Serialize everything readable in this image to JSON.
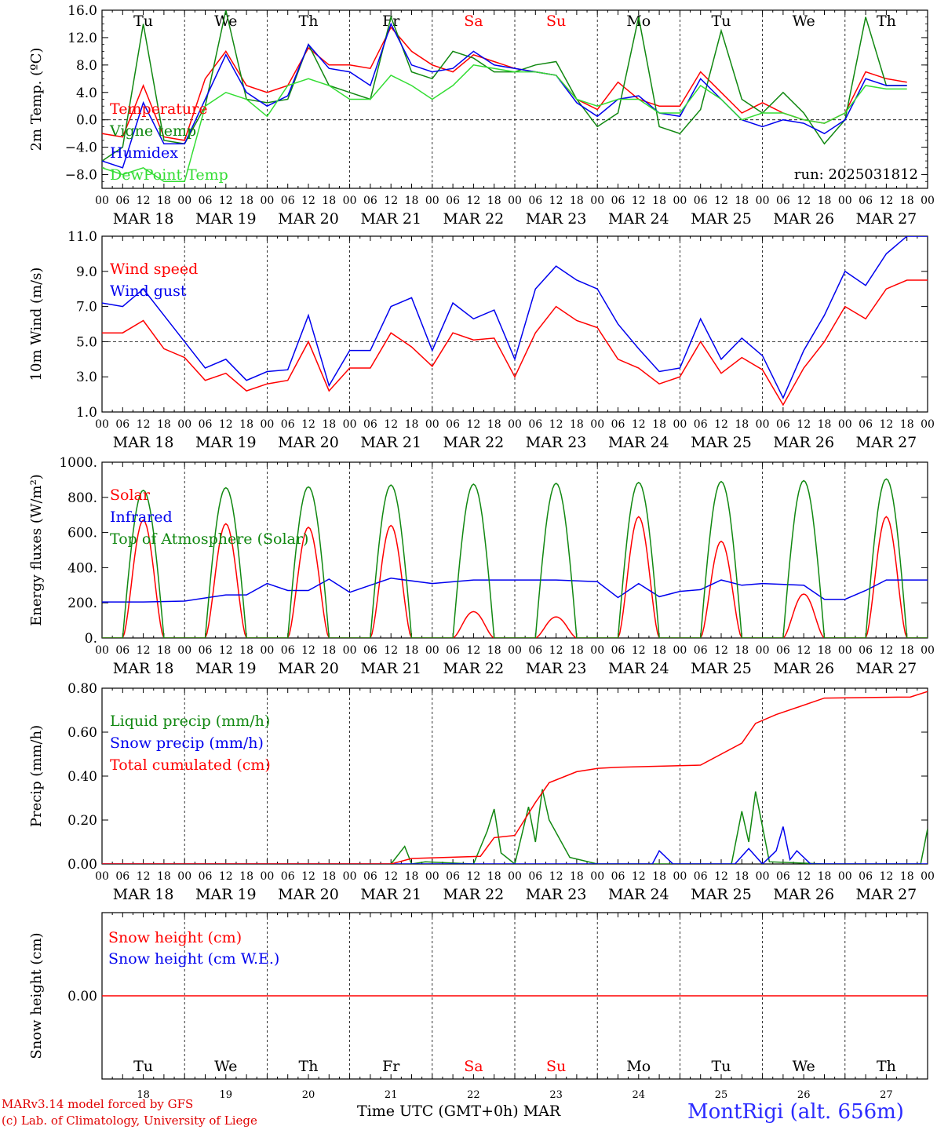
{
  "run_label": "run: 2025031812",
  "footer": {
    "credit1": "MARv3.14 model forced by GFS",
    "credit2": "(c) Lab. of Climatology, University of Liege",
    "time_label": "Time UTC (GMT+0h) MAR",
    "station": "MontRigi (alt. 656m)"
  },
  "colors": {
    "red": "#ff0000",
    "darkgreen": "#118811",
    "blue": "#0000ee",
    "lightgreen": "#33dd33",
    "weekend": "#ff0000",
    "black": "#000000"
  },
  "days": [
    {
      "abbr": "Tu",
      "date": "MAR 18",
      "num": "18",
      "weekend": false
    },
    {
      "abbr": "We",
      "date": "MAR 19",
      "num": "19",
      "weekend": false
    },
    {
      "abbr": "Th",
      "date": "MAR 20",
      "num": "20",
      "weekend": false
    },
    {
      "abbr": "Fr",
      "date": "MAR 21",
      "num": "21",
      "weekend": false
    },
    {
      "abbr": "Sa",
      "date": "MAR 22",
      "num": "22",
      "weekend": true
    },
    {
      "abbr": "Su",
      "date": "MAR 23",
      "num": "23",
      "weekend": true
    },
    {
      "abbr": "Mo",
      "date": "MAR 24",
      "num": "24",
      "weekend": false
    },
    {
      "abbr": "Tu",
      "date": "MAR 25",
      "num": "25",
      "weekend": false
    },
    {
      "abbr": "We",
      "date": "MAR 26",
      "num": "26",
      "weekend": false
    },
    {
      "abbr": "Th",
      "date": "MAR 27",
      "num": "27",
      "weekend": false
    }
  ],
  "hour_ticks": [
    "00",
    "06",
    "12",
    "18"
  ],
  "hour_tick_end": "00",
  "chart_data": [
    {
      "type": "line",
      "ylabel": "2m Temp. (ºC)",
      "ylim": [
        -10,
        16
      ],
      "yticks": [
        16,
        12,
        8,
        4,
        0,
        -4,
        -8
      ],
      "ytick_labels": [
        "16.0",
        "12.0",
        "8.0",
        "4.0",
        "0.0",
        "−4.0",
        "−8.0"
      ],
      "dashed_ref": 0,
      "x_unit": "hours since MAR 18 00 UTC",
      "series": [
        {
          "name": "Temperature",
          "color": "red",
          "x": [
            0,
            6,
            12,
            18,
            24,
            30,
            36,
            42,
            48,
            54,
            60,
            66,
            72,
            78,
            84,
            90,
            96,
            102,
            108,
            114,
            120,
            126,
            132,
            138,
            144,
            150,
            156,
            162,
            168,
            174,
            180,
            186,
            192,
            198,
            204,
            210,
            216,
            222,
            228,
            234
          ],
          "y": [
            -2,
            -2.5,
            5,
            -2.5,
            -3,
            6,
            10,
            5,
            4,
            5,
            10.5,
            8,
            8,
            7.5,
            13.5,
            10,
            8,
            7,
            9.5,
            8.5,
            7.5,
            7,
            6.5,
            3,
            1.5,
            5.5,
            3,
            2,
            2,
            7,
            4,
            1,
            2.5,
            1,
            0,
            -0.5,
            1,
            7,
            6,
            5.5
          ]
        },
        {
          "name": "Vigne temp",
          "color": "darkgreen",
          "x": [
            0,
            6,
            12,
            18,
            24,
            30,
            36,
            42,
            48,
            54,
            60,
            66,
            72,
            78,
            84,
            90,
            96,
            102,
            108,
            114,
            120,
            126,
            132,
            138,
            144,
            150,
            156,
            162,
            168,
            174,
            180,
            186,
            192,
            198,
            204,
            210,
            216,
            222,
            228,
            234
          ],
          "y": [
            -6,
            -4,
            14,
            -3,
            -3.5,
            2,
            16,
            3,
            2.5,
            3,
            11,
            5,
            4,
            3,
            15,
            7,
            6,
            10,
            9,
            7,
            7,
            8,
            8.5,
            3,
            -1,
            1,
            15,
            -1,
            -2,
            1.5,
            13,
            3,
            1,
            4,
            1,
            -3.5,
            0,
            15,
            5,
            5
          ]
        },
        {
          "name": "Humidex",
          "color": "blue",
          "x": [
            0,
            6,
            12,
            18,
            24,
            30,
            36,
            42,
            48,
            54,
            60,
            66,
            72,
            78,
            84,
            90,
            96,
            102,
            108,
            114,
            120,
            126,
            132,
            138,
            144,
            150,
            156,
            162,
            168,
            174,
            180,
            186,
            192,
            198,
            204,
            210,
            216,
            222,
            228,
            234
          ],
          "y": [
            -6,
            -7,
            2.5,
            -3.5,
            -3.5,
            3,
            9.5,
            4,
            2,
            3.5,
            11,
            7.5,
            7,
            5,
            14,
            8,
            7,
            7.5,
            10,
            8,
            7.5,
            7,
            6.5,
            2.5,
            0.5,
            3,
            3.5,
            1,
            0.5,
            6,
            3,
            0,
            -1,
            0,
            -0.5,
            -2,
            0,
            6,
            5,
            5
          ]
        },
        {
          "name": "DewPoint Temp",
          "color": "lightgreen",
          "x": [
            0,
            6,
            12,
            18,
            24,
            30,
            36,
            42,
            48,
            54,
            60,
            66,
            72,
            78,
            84,
            90,
            96,
            102,
            108,
            114,
            120,
            126,
            132,
            138,
            144,
            150,
            156,
            162,
            168,
            174,
            180,
            186,
            192,
            198,
            204,
            210,
            216,
            222,
            228,
            234
          ],
          "y": [
            -7,
            -8,
            -7,
            -9,
            -9,
            2,
            4,
            3,
            0.5,
            5,
            6,
            5,
            3,
            3,
            6.5,
            5,
            3,
            5,
            8,
            7.5,
            7,
            7,
            6.5,
            3,
            2,
            3,
            3,
            1,
            1,
            5,
            3,
            0,
            1,
            1,
            0,
            -0.5,
            1,
            5,
            4.5,
            4.5
          ]
        }
      ]
    },
    {
      "type": "line",
      "ylabel": "10m Wind (m/s)",
      "ylim": [
        1,
        11
      ],
      "yticks": [
        11,
        9,
        7,
        5,
        3,
        1
      ],
      "ytick_labels": [
        "11.0",
        "9.0",
        "7.0",
        "5.0",
        "3.0",
        "1.0"
      ],
      "dashed_ref": 5,
      "x_unit": "hours since MAR 18 00 UTC",
      "series": [
        {
          "name": "Wind speed",
          "color": "red",
          "x": [
            0,
            6,
            12,
            18,
            24,
            30,
            36,
            42,
            48,
            54,
            60,
            66,
            72,
            78,
            84,
            90,
            96,
            102,
            108,
            114,
            120,
            126,
            132,
            138,
            144,
            150,
            156,
            162,
            168,
            174,
            180,
            186,
            192,
            198,
            204,
            210,
            216,
            222,
            228,
            234,
            240
          ],
          "y": [
            5.5,
            5.5,
            6.2,
            4.6,
            4.1,
            2.8,
            3.2,
            2.2,
            2.6,
            2.8,
            5,
            2.2,
            3.5,
            3.5,
            5.5,
            4.7,
            3.6,
            5.5,
            5.1,
            5.2,
            3,
            5.5,
            7,
            6.2,
            5.8,
            4,
            3.5,
            2.6,
            3,
            5,
            3.2,
            4.1,
            3.4,
            1.4,
            3.5,
            5,
            7,
            6.3,
            8,
            8.5,
            8.5
          ]
        },
        {
          "name": "Wind gust",
          "color": "blue",
          "x": [
            0,
            6,
            12,
            18,
            24,
            30,
            36,
            42,
            48,
            54,
            60,
            66,
            72,
            78,
            84,
            90,
            96,
            102,
            108,
            114,
            120,
            126,
            132,
            138,
            144,
            150,
            156,
            162,
            168,
            174,
            180,
            186,
            192,
            198,
            204,
            210,
            216,
            222,
            228,
            234,
            240
          ],
          "y": [
            7.2,
            7,
            8,
            6.5,
            5,
            3.5,
            4,
            2.8,
            3.3,
            3.4,
            6.5,
            2.5,
            4.5,
            4.5,
            7,
            7.5,
            4.5,
            7.2,
            6.3,
            6.8,
            4,
            8,
            9.3,
            8.5,
            8,
            6,
            4.6,
            3.3,
            3.5,
            6.3,
            4,
            5.2,
            4.2,
            1.8,
            4.5,
            6.5,
            9,
            8.2,
            10,
            11,
            11
          ]
        }
      ]
    },
    {
      "type": "line",
      "ylabel": "Energy fluxes (W/m²)",
      "ylim": [
        0,
        1000
      ],
      "yticks": [
        1000,
        800,
        600,
        400,
        200,
        0
      ],
      "ytick_labels": [
        "1000.",
        "800.",
        "600.",
        "400.",
        "200.",
        "0."
      ],
      "x_unit": "hours since MAR 18 00 UTC",
      "series": [
        {
          "name": "Solar",
          "color": "red",
          "peaks": [
            670,
            650,
            630,
            640,
            150,
            120,
            690,
            550,
            250,
            690
          ]
        },
        {
          "name": "Infrared",
          "color": "blue",
          "x": [
            0,
            12,
            24,
            36,
            42,
            48,
            54,
            60,
            66,
            72,
            84,
            96,
            108,
            120,
            132,
            144,
            150,
            156,
            162,
            168,
            174,
            180,
            186,
            192,
            204,
            210,
            216,
            222,
            228,
            240
          ],
          "y": [
            205,
            205,
            210,
            245,
            245,
            310,
            270,
            270,
            335,
            260,
            340,
            310,
            330,
            330,
            330,
            320,
            230,
            310,
            235,
            265,
            275,
            330,
            300,
            310,
            300,
            220,
            220,
            270,
            330,
            330
          ]
        },
        {
          "name": "Top of Atmosphere (Solar)",
          "color": "darkgreen",
          "peaks": [
            840,
            855,
            860,
            870,
            875,
            880,
            885,
            890,
            895,
            905
          ]
        }
      ]
    },
    {
      "type": "line",
      "ylabel": "Precip (mm/h)",
      "ylim": [
        0,
        0.8
      ],
      "yticks": [
        0.8,
        0.6,
        0.4,
        0.2,
        0
      ],
      "ytick_labels": [
        "0.80",
        "0.60",
        "0.40",
        "0.20",
        "0.00"
      ],
      "x_unit": "hours since MAR 18 00 UTC",
      "series": [
        {
          "name": "Liquid precip (mm/h)",
          "color": "darkgreen",
          "x": [
            0,
            84,
            88,
            90,
            94,
            108,
            112,
            114,
            116,
            120,
            124,
            126,
            128,
            130,
            136,
            144,
            168,
            183,
            186,
            188,
            190,
            194,
            210,
            238,
            240
          ],
          "y": [
            0,
            0,
            0.08,
            0,
            0.01,
            0,
            0.15,
            0.25,
            0.05,
            0,
            0.26,
            0.1,
            0.34,
            0.2,
            0.03,
            0,
            0,
            0,
            0.24,
            0.1,
            0.33,
            0.01,
            0,
            0,
            0.16
          ]
        },
        {
          "name": "Snow precip (mm/h)",
          "color": "blue",
          "x": [
            0,
            100,
            160,
            162,
            166,
            184,
            188,
            192,
            196,
            198,
            200,
            202,
            206,
            240
          ],
          "y": [
            0,
            0,
            0,
            0.06,
            0,
            0,
            0.07,
            0,
            0.06,
            0.17,
            0.02,
            0.06,
            0,
            0
          ]
        },
        {
          "name": "Total cumulated (cm)",
          "color": "red",
          "x": [
            0,
            84,
            90,
            110,
            114,
            120,
            126,
            130,
            138,
            144,
            150,
            174,
            186,
            190,
            196,
            210,
            235,
            240
          ],
          "y": [
            0,
            0,
            0.025,
            0.035,
            0.12,
            0.13,
            0.28,
            0.37,
            0.42,
            0.435,
            0.44,
            0.45,
            0.55,
            0.64,
            0.68,
            0.755,
            0.76,
            0.785
          ]
        }
      ]
    },
    {
      "type": "line",
      "ylabel": "Snow height (cm)",
      "ylim": [
        -1,
        1
      ],
      "yticks": [
        0
      ],
      "ytick_labels": [
        "0.00"
      ],
      "x_unit": "hours since MAR 18 00 UTC",
      "series": [
        {
          "name": "Snow height (cm)",
          "color": "red",
          "x": [
            0,
            240
          ],
          "y": [
            0,
            0
          ]
        },
        {
          "name": "Snow height (cm W.E.)",
          "color": "blue",
          "x": [],
          "y": []
        }
      ]
    }
  ]
}
